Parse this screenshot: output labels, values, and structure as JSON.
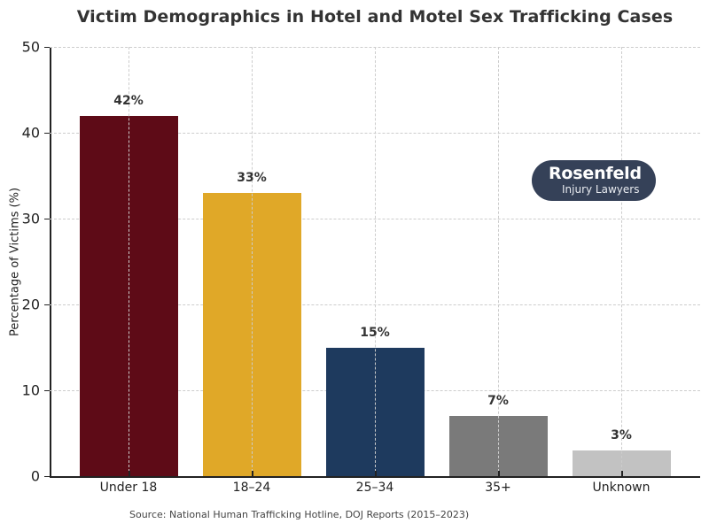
{
  "chart_data": {
    "type": "bar",
    "title": "Victim Demographics in Hotel and Motel Sex Trafficking Cases",
    "xlabel": "",
    "ylabel": "Percentage of Victims (%)",
    "categories": [
      "Under 18",
      "18–24",
      "25–34",
      "35+",
      "Unknown"
    ],
    "values": [
      42,
      33,
      15,
      7,
      3
    ],
    "value_labels": [
      "42%",
      "33%",
      "15%",
      "7%",
      "3%"
    ],
    "colors": [
      "#5e0b17",
      "#e0a828",
      "#1e3a5e",
      "#7a7a7a",
      "#c2c2c2"
    ],
    "ylim": [
      0,
      50
    ],
    "yticks": [
      0,
      10,
      20,
      30,
      40,
      50
    ],
    "grid": true,
    "legend": null,
    "annotations": [
      "Source: National Human Trafficking Hotline, DOJ Reports (2015–2023)"
    ]
  },
  "header": {
    "title": "Victim Demographics in Hotel and Motel Sex Trafficking Cases"
  },
  "axes": {
    "ylabel": "Percentage of Victims (%)",
    "ytick_labels": [
      "0",
      "10",
      "20",
      "30",
      "40",
      "50"
    ]
  },
  "footer": {
    "source": "Source: National Human Trafficking Hotline, DOJ Reports (2015–2023)"
  },
  "logo": {
    "name": "Rosenfeld",
    "subtitle": "Injury Lawyers",
    "background": "#354158"
  }
}
